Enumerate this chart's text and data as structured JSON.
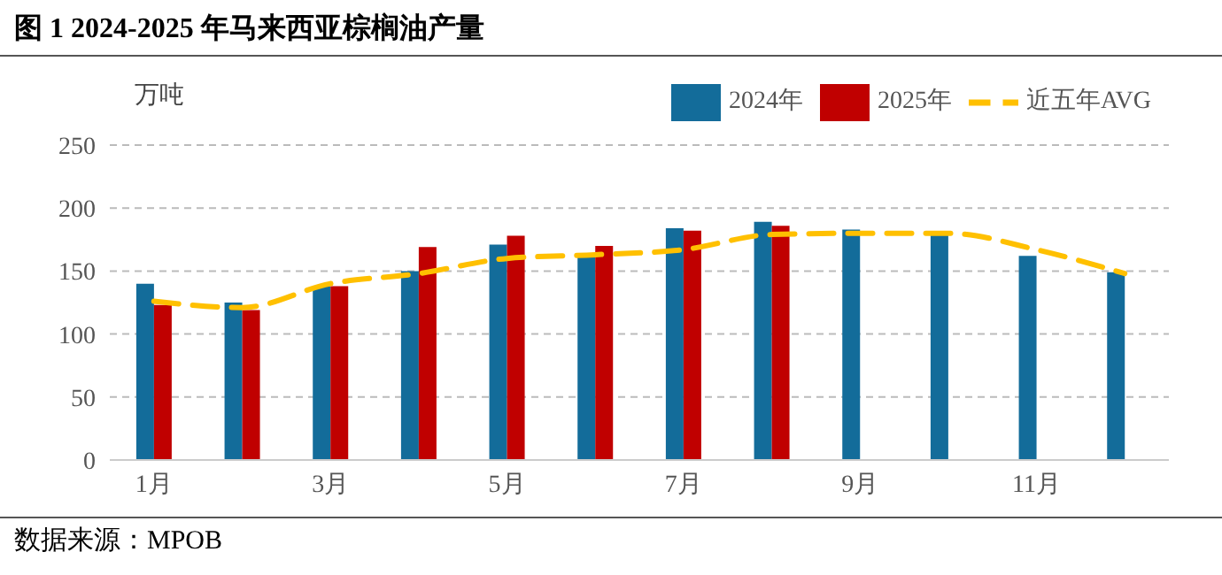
{
  "chart_data": {
    "type": "bar",
    "title": "图 1 2024-2025 年马来西亚棕榈油产量",
    "ylabel": "万吨",
    "categories": [
      "1月",
      null,
      "3月",
      null,
      "5月",
      null,
      "7月",
      null,
      "9月",
      null,
      "11月",
      null
    ],
    "series": [
      {
        "name": "2024年",
        "color": "#136c9a",
        "values": [
          140,
          125,
          138,
          150,
          171,
          162,
          184,
          189,
          183,
          180,
          162,
          149
        ]
      },
      {
        "name": "2025年",
        "color": "#c00000",
        "values": [
          123,
          119,
          138,
          169,
          178,
          170,
          182,
          186,
          null,
          null,
          null,
          null
        ]
      },
      {
        "name": "近五年AVG",
        "type": "line",
        "color": "#ffc000",
        "line_style": "dashed",
        "marker": "none",
        "values": [
          126,
          121,
          140,
          148,
          160,
          163,
          167,
          179,
          180,
          180,
          167,
          148
        ]
      }
    ],
    "ylim": [
      0,
      250
    ],
    "yticks": [
      0,
      50,
      100,
      150,
      200,
      250
    ],
    "grid": "y",
    "legend": "top right",
    "annotations": [
      "数据来源：MPOB"
    ]
  }
}
